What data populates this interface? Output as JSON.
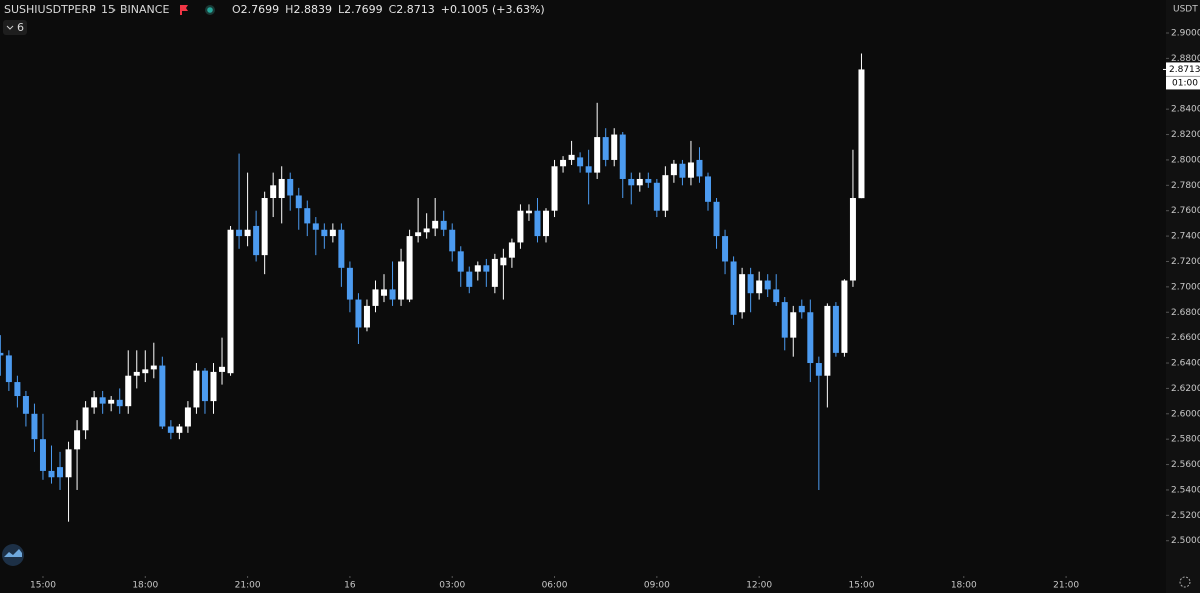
{
  "header": {
    "symbol": "SUSHIUSDTPERP",
    "interval": "15",
    "exchange": "BINANCE",
    "ohlc": [
      {
        "label": "O",
        "value": "2.7699"
      },
      {
        "label": "H",
        "value": "2.8839"
      },
      {
        "label": "L",
        "value": "2.7699"
      },
      {
        "label": "C",
        "value": "2.8713"
      }
    ],
    "change": "+0.1005 (+3.63%)",
    "indicators": "6",
    "currency": "USDT",
    "countdown": "01:00"
  },
  "chart_data": {
    "type": "candlestick",
    "up_color": "#ffffff",
    "down_color": "#4c9bf0",
    "x": [
      13.75,
      14,
      14.25,
      14.5,
      14.75,
      15,
      15.25,
      15.5,
      15.75,
      16,
      16.25,
      16.5,
      16.75,
      17,
      17.25,
      17.5,
      17.75,
      18,
      18.25,
      18.5,
      18.75,
      19,
      19.25,
      19.5,
      19.75,
      20,
      20.25,
      20.5,
      20.75,
      21,
      21.25,
      21.5,
      21.75,
      22,
      22.25,
      22.5,
      22.75,
      23,
      23.25,
      23.5,
      23.75,
      24,
      24.25,
      24.5,
      24.75,
      25,
      25.25,
      25.5,
      25.75,
      26,
      26.25,
      26.5,
      26.75,
      27,
      27.25,
      27.5,
      27.75,
      28,
      28.25,
      28.5,
      28.75,
      29,
      29.25,
      29.5,
      29.75,
      30,
      30.25,
      30.5,
      30.75,
      31,
      31.25,
      31.5,
      31.75,
      32,
      32.25,
      32.5,
      32.75,
      33,
      33.25,
      33.5,
      33.75,
      34,
      34.25,
      34.5,
      34.75,
      35,
      35.25,
      35.5,
      35.75,
      36,
      36.25,
      36.5,
      36.75,
      37,
      37.25,
      37.5,
      37.75,
      38,
      38.25,
      38.5,
      38.75,
      39
    ],
    "open": [
      2.648,
      2.646,
      2.625,
      2.614,
      2.6,
      2.58,
      2.555,
      2.558,
      2.55,
      2.572,
      2.587,
      2.605,
      2.613,
      2.608,
      2.611,
      2.606,
      2.63,
      2.632,
      2.635,
      2.638,
      2.59,
      2.585,
      2.59,
      2.605,
      2.634,
      2.61,
      2.633,
      2.632,
      2.745,
      2.74,
      2.748,
      2.725,
      2.77,
      2.77,
      2.785,
      2.772,
      2.762,
      2.75,
      2.745,
      2.74,
      2.745,
      2.715,
      2.69,
      2.668,
      2.685,
      2.693,
      2.698,
      2.69,
      2.69,
      2.74,
      2.743,
      2.746,
      2.752,
      2.745,
      2.728,
      2.712,
      2.712,
      2.717,
      2.7,
      2.717,
      2.723,
      2.735,
      2.758,
      2.76,
      2.74,
      2.76,
      2.795,
      2.8,
      2.802,
      2.795,
      2.79,
      2.818,
      2.8,
      2.82,
      2.785,
      2.78,
      2.785,
      2.782,
      2.76,
      2.788,
      2.797,
      2.786,
      2.8,
      2.787,
      2.767,
      2.74,
      2.72,
      2.68,
      2.71,
      2.695,
      2.705,
      2.698,
      2.688,
      2.66,
      2.685,
      2.68,
      2.64,
      2.63,
      2.685,
      2.648,
      2.705,
      2.7699
    ],
    "high": [
      2.662,
      2.65,
      2.63,
      2.618,
      2.608,
      2.6,
      2.575,
      2.57,
      2.578,
      2.595,
      2.61,
      2.618,
      2.618,
      2.614,
      2.62,
      2.65,
      2.65,
      2.65,
      2.656,
      2.645,
      2.595,
      2.592,
      2.61,
      2.64,
      2.636,
      2.64,
      2.66,
      2.748,
      2.805,
      2.79,
      2.76,
      2.775,
      2.79,
      2.795,
      2.79,
      2.778,
      2.768,
      2.755,
      2.75,
      2.75,
      2.75,
      2.72,
      2.695,
      2.69,
      2.705,
      2.71,
      2.72,
      2.73,
      2.745,
      2.77,
      2.758,
      2.77,
      2.76,
      2.75,
      2.732,
      2.716,
      2.72,
      2.722,
      2.726,
      2.73,
      2.738,
      2.765,
      2.765,
      2.77,
      2.762,
      2.8,
      2.803,
      2.815,
      2.806,
      2.808,
      2.845,
      2.825,
      2.825,
      2.822,
      2.79,
      2.79,
      2.79,
      2.785,
      2.795,
      2.8,
      2.8,
      2.815,
      2.81,
      2.79,
      2.77,
      2.745,
      2.724,
      2.715,
      2.715,
      2.712,
      2.71,
      2.71,
      2.692,
      2.685,
      2.69,
      2.69,
      2.645,
      2.687,
      2.688,
      2.706,
      2.808,
      2.8839
    ],
    "low": [
      2.63,
      2.618,
      2.605,
      2.59,
      2.57,
      2.548,
      2.545,
      2.54,
      2.515,
      2.54,
      2.58,
      2.6,
      2.6,
      2.602,
      2.6,
      2.6,
      2.62,
      2.625,
      2.628,
      2.588,
      2.58,
      2.58,
      2.585,
      2.6,
      2.6,
      2.6,
      2.623,
      2.63,
      2.73,
      2.732,
      2.72,
      2.71,
      2.755,
      2.75,
      2.76,
      2.745,
      2.74,
      2.725,
      2.73,
      2.735,
      2.7,
      2.68,
      2.655,
      2.665,
      2.68,
      2.688,
      2.685,
      2.685,
      2.688,
      2.735,
      2.738,
      2.74,
      2.74,
      2.72,
      2.7,
      2.695,
      2.705,
      2.7,
      2.695,
      2.69,
      2.715,
      2.73,
      2.752,
      2.735,
      2.735,
      2.755,
      2.79,
      2.796,
      2.79,
      2.765,
      2.785,
      2.795,
      2.795,
      2.77,
      2.765,
      2.775,
      2.778,
      2.755,
      2.755,
      2.782,
      2.78,
      2.78,
      2.782,
      2.76,
      2.73,
      2.71,
      2.67,
      2.675,
      2.68,
      2.69,
      2.692,
      2.685,
      2.65,
      2.645,
      2.675,
      2.625,
      2.54,
      2.605,
      2.645,
      2.645,
      2.7,
      2.7699
    ],
    "close": [
      2.646,
      2.625,
      2.614,
      2.6,
      2.58,
      2.555,
      2.55,
      2.55,
      2.572,
      2.587,
      2.605,
      2.613,
      2.608,
      2.611,
      2.606,
      2.63,
      2.633,
      2.635,
      2.638,
      2.59,
      2.585,
      2.59,
      2.605,
      2.634,
      2.61,
      2.633,
      2.637,
      2.745,
      2.74,
      2.745,
      2.725,
      2.77,
      2.78,
      2.785,
      2.772,
      2.762,
      2.75,
      2.745,
      2.74,
      2.745,
      2.715,
      2.69,
      2.668,
      2.685,
      2.698,
      2.698,
      2.69,
      2.72,
      2.74,
      2.743,
      2.746,
      2.752,
      2.745,
      2.728,
      2.712,
      2.7,
      2.717,
      2.712,
      2.722,
      2.723,
      2.735,
      2.76,
      2.76,
      2.74,
      2.76,
      2.795,
      2.8,
      2.804,
      2.795,
      2.79,
      2.818,
      2.8,
      2.82,
      2.785,
      2.78,
      2.785,
      2.782,
      2.76,
      2.788,
      2.797,
      2.786,
      2.798,
      2.787,
      2.767,
      2.74,
      2.72,
      2.678,
      2.71,
      2.695,
      2.705,
      2.698,
      2.688,
      2.66,
      2.68,
      2.68,
      2.64,
      2.63,
      2.685,
      2.648,
      2.705,
      2.77,
      2.8713
    ],
    "xlim": [
      13.74,
      47.9
    ],
    "xticks": [
      {
        "value": 15,
        "label": "15:00"
      },
      {
        "value": 18,
        "label": "18:00"
      },
      {
        "value": 21,
        "label": "21:00"
      },
      {
        "value": 24,
        "label": "16"
      },
      {
        "value": 27,
        "label": "03:00"
      },
      {
        "value": 30,
        "label": "06:00"
      },
      {
        "value": 33,
        "label": "09:00"
      },
      {
        "value": 36,
        "label": "12:00"
      },
      {
        "value": 39,
        "label": "15:00"
      },
      {
        "value": 42,
        "label": "18:00"
      },
      {
        "value": 45,
        "label": "21:00"
      }
    ],
    "ylim": [
      2.473,
      2.926
    ],
    "yticks": [
      {
        "value": 2.5,
        "label": "2.5000"
      },
      {
        "value": 2.52,
        "label": "2.5200"
      },
      {
        "value": 2.54,
        "label": "2.5400"
      },
      {
        "value": 2.56,
        "label": "2.5600"
      },
      {
        "value": 2.58,
        "label": "2.5800"
      },
      {
        "value": 2.6,
        "label": "2.6000"
      },
      {
        "value": 2.62,
        "label": "2.6200"
      },
      {
        "value": 2.64,
        "label": "2.6400"
      },
      {
        "value": 2.66,
        "label": "2.6600"
      },
      {
        "value": 2.68,
        "label": "2.6800"
      },
      {
        "value": 2.7,
        "label": "2.7000"
      },
      {
        "value": 2.72,
        "label": "2.7200"
      },
      {
        "value": 2.74,
        "label": "2.7400"
      },
      {
        "value": 2.76,
        "label": "2.7600"
      },
      {
        "value": 2.78,
        "label": "2.7800"
      },
      {
        "value": 2.8,
        "label": "2.8000"
      },
      {
        "value": 2.82,
        "label": "2.8200"
      },
      {
        "value": 2.84,
        "label": "2.8400"
      },
      {
        "value": 2.86,
        "label": "2.8600"
      },
      {
        "value": 2.88,
        "label": "2.8800"
      },
      {
        "value": 2.9,
        "label": "2.9000"
      }
    ],
    "last_price": 2.8713
  }
}
